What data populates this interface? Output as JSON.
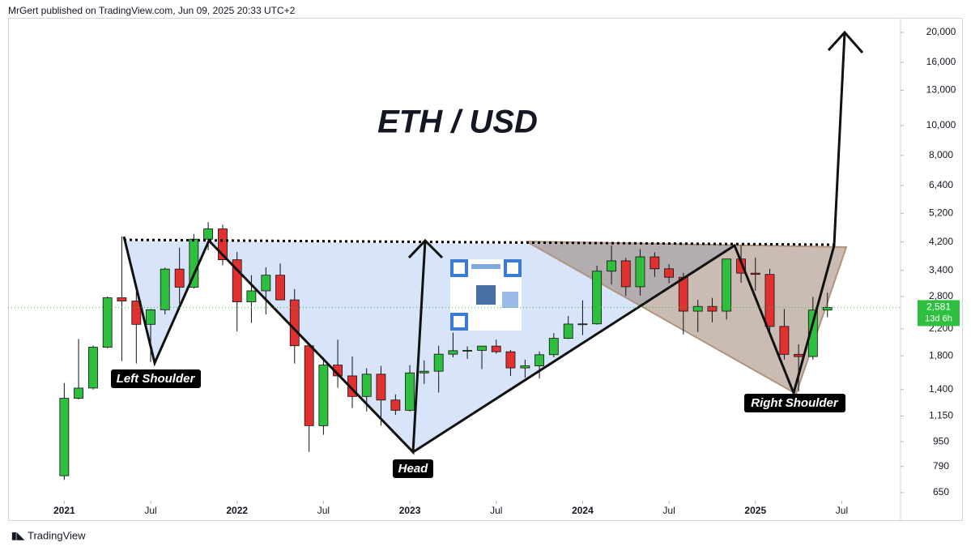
{
  "header": {
    "publisher": "MrGert published on TradingView.com, Jun 09, 2025 20:33 UTC+2"
  },
  "chart_data": {
    "type": "candlestick",
    "title": "ETH / USD",
    "x": [
      2021.0,
      2021.083,
      2021.167,
      2021.25,
      2021.333,
      2021.417,
      2021.5,
      2021.583,
      2021.667,
      2021.75,
      2021.833,
      2021.917,
      2022.0,
      2022.083,
      2022.167,
      2022.25,
      2022.333,
      2022.417,
      2022.5,
      2022.583,
      2022.667,
      2022.75,
      2022.833,
      2022.917,
      2023.0,
      2023.083,
      2023.167,
      2023.25,
      2023.333,
      2023.417,
      2023.5,
      2023.583,
      2023.667,
      2023.75,
      2023.833,
      2023.917,
      2024.0,
      2024.083,
      2024.167,
      2024.25,
      2024.333,
      2024.417,
      2024.5,
      2024.583,
      2024.667,
      2024.75,
      2024.833,
      2024.917,
      2025.0,
      2025.083,
      2025.167,
      2025.25,
      2025.333,
      2025.417
    ],
    "open": [
      737,
      1312,
      1416,
      1919,
      2773,
      2707,
      2275,
      2536,
      3433,
      3000,
      4290,
      4630,
      3680,
      2690,
      2920,
      3280,
      2730,
      1940,
      1070,
      1680,
      1550,
      1330,
      1570,
      1295,
      1200,
      1585,
      1605,
      1822,
      1870,
      1875,
      1935,
      1855,
      1645,
      1670,
      1815,
      2050,
      2280,
      2283,
      3380,
      3650,
      3010,
      3760,
      3440,
      3230,
      2510,
      2600,
      2510,
      3700,
      3330,
      3300,
      2240,
      1820,
      1790,
      2530
    ],
    "high": [
      1470,
      2040,
      1945,
      2800,
      4380,
      2890,
      2550,
      3470,
      4030,
      4460,
      4870,
      4780,
      3900,
      3280,
      3480,
      3580,
      2960,
      1970,
      1780,
      2030,
      1790,
      1640,
      1670,
      1350,
      1680,
      1740,
      1940,
      2140,
      1930,
      1930,
      2030,
      1880,
      1750,
      1860,
      2130,
      2420,
      2720,
      3520,
      4090,
      3730,
      3980,
      3890,
      3560,
      3340,
      2730,
      2770,
      3680,
      4100,
      3740,
      3440,
      2550,
      1960,
      2790,
      2880
    ],
    "low": [
      715,
      1300,
      1400,
      1900,
      1730,
      1700,
      1720,
      2450,
      2650,
      2970,
      3950,
      3530,
      2160,
      2300,
      2450,
      2780,
      1700,
      880,
      1000,
      1420,
      1220,
      1190,
      1070,
      1160,
      1190,
      1460,
      1370,
      1780,
      1760,
      1630,
      1830,
      1550,
      1530,
      1520,
      1780,
      2040,
      2100,
      2270,
      3060,
      2810,
      2820,
      3240,
      3090,
      2110,
      2150,
      2310,
      2360,
      3100,
      2920,
      2120,
      1750,
      1380,
      1750,
      2400
    ],
    "close": [
      1312,
      1416,
      1919,
      2773,
      2707,
      2275,
      2536,
      3433,
      3000,
      4290,
      4630,
      3680,
      2690,
      2920,
      3280,
      2730,
      1940,
      1070,
      1680,
      1550,
      1330,
      1570,
      1295,
      1200,
      1585,
      1605,
      1822,
      1870,
      1875,
      1935,
      1855,
      1645,
      1670,
      1815,
      2050,
      2280,
      2283,
      3380,
      3650,
      3010,
      3760,
      3440,
      3230,
      2510,
      2600,
      2510,
      3700,
      3330,
      3300,
      2240,
      1820,
      1790,
      2530,
      2581
    ],
    "up_color": "#2fbf3f",
    "down_color": "#e0302f",
    "log_scale": true,
    "ylim": [
      612,
      22560
    ],
    "yticks": [
      650,
      790,
      950,
      {
        "value": 1150,
        "label": "1,150"
      },
      {
        "value": 1400,
        "label": "1,400"
      },
      {
        "value": 1800,
        "label": "1,800"
      },
      {
        "value": 2200,
        "label": "2,200"
      },
      {
        "value": 2800,
        "label": "2,800"
      },
      {
        "value": 3400,
        "label": "3,400"
      },
      {
        "value": 4200,
        "label": "4,200"
      },
      {
        "value": 5200,
        "label": "5,200"
      },
      {
        "value": 6400,
        "label": "6,400"
      },
      {
        "value": 8000,
        "label": "8,000"
      },
      {
        "value": 10000,
        "label": "10,000"
      },
      {
        "value": 13000,
        "label": "13,000"
      },
      {
        "value": 16000,
        "label": "16,000"
      },
      {
        "value": 20000,
        "label": "20,000"
      }
    ],
    "xlim": [
      2020.675,
      2025.84
    ],
    "xticks": [
      2021,
      {
        "value": 2021.5,
        "label": "Jul"
      },
      2022,
      {
        "value": 2022.5,
        "label": "Jul"
      },
      2023,
      {
        "value": 2023.5,
        "label": "Jul"
      },
      2024,
      {
        "value": 2024.5,
        "label": "Jul"
      },
      2025,
      {
        "value": 2025.5,
        "label": "Jul"
      }
    ],
    "annotations": [
      "Left Shoulder",
      "Head",
      "Right Shoulder"
    ],
    "last_price": {
      "value": 2581,
      "label": "2,581"
    },
    "countdown": "13d 6h"
  },
  "footer": {
    "brand": "TradingView"
  }
}
